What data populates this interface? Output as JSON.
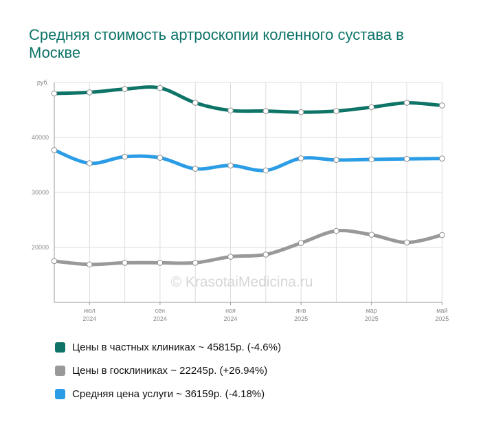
{
  "chart_data": {
    "type": "line",
    "title": "Средняя стоимость артроскопии коленного сустава в Москве",
    "y_unit_label": "руб.",
    "ylim": [
      10000,
      50000
    ],
    "y_ticks": [
      {
        "value": 20000,
        "label": "20000"
      },
      {
        "value": 30000,
        "label": "30000"
      },
      {
        "value": 40000,
        "label": "40000"
      }
    ],
    "x_months": [
      "2024-06",
      "2024-07",
      "2024-08",
      "2024-09",
      "2024-10",
      "2024-11",
      "2024-12",
      "2025-01",
      "2025-02",
      "2025-03",
      "2025-04",
      "2025-05"
    ],
    "x_tick_labels": [
      {
        "month": "2024-07",
        "line1": "июл",
        "line2": "2024"
      },
      {
        "month": "2024-09",
        "line1": "сен",
        "line2": "2024"
      },
      {
        "month": "2024-11",
        "line1": "ноя",
        "line2": "2024"
      },
      {
        "month": "2025-01",
        "line1": "янв",
        "line2": "2025"
      },
      {
        "month": "2025-03",
        "line1": "мар",
        "line2": "2025"
      },
      {
        "month": "2025-05",
        "line1": "май",
        "line2": "2025"
      }
    ],
    "grid": true,
    "legend_position": "bottom",
    "series": [
      {
        "name": "Цены в частных клиниках",
        "color": "#0e7468",
        "values": [
          48000,
          48200,
          48800,
          49000,
          46300,
          44900,
          44800,
          44600,
          44800,
          45500,
          46300,
          45815
        ]
      },
      {
        "name": "Цены в госклиниках",
        "color": "#999999",
        "values": [
          17500,
          16900,
          17200,
          17200,
          17200,
          18300,
          18700,
          20800,
          23000,
          22300,
          20900,
          22245
        ]
      },
      {
        "name": "Средняя цена услуги",
        "color": "#2b9de6",
        "values": [
          37700,
          35300,
          36500,
          36300,
          34300,
          34900,
          34000,
          36200,
          35900,
          36000,
          36100,
          36159
        ]
      }
    ]
  },
  "legend": [
    {
      "text": "Цены в частных клиниках ~ 45815р. (-4.6%)",
      "color": "#0e7468"
    },
    {
      "text": "Цены в госклиниках ~ 22245р. (+26.94%)",
      "color": "#999999"
    },
    {
      "text": "Средняя цена услуги ~ 36159р. (-4.18%)",
      "color": "#2b9de6"
    }
  ],
  "watermark": "© KrasotaiMedicina.ru"
}
